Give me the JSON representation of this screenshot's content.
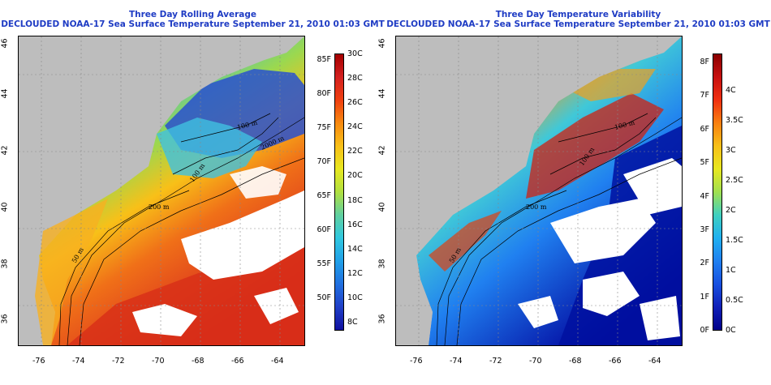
{
  "left": {
    "title_line1": "Three Day Rolling Average",
    "title_line2": "DECLOUDED NOAA-17 Sea Surface Temperature September 21, 2010 01:03 GMT",
    "contour_labels": [
      "50 m",
      "200 m",
      "100 m",
      "100 m",
      "2000 m"
    ],
    "colorbar_f": [
      "85F",
      "80F",
      "75F",
      "70F",
      "65F",
      "60F",
      "55F",
      "50F"
    ],
    "colorbar_c": [
      "30C",
      "28C",
      "26C",
      "24C",
      "22C",
      "20C",
      "18C",
      "16C",
      "14C",
      "12C",
      "10C",
      "8C"
    ],
    "colors": [
      "#a50000",
      "#d42020",
      "#f04010",
      "#f88a10",
      "#f8c018",
      "#e8e820",
      "#b0e040",
      "#60d0a0",
      "#30c8e0",
      "#20a0e8",
      "#2070e0",
      "#2040c8",
      "#1010a0"
    ]
  },
  "right": {
    "title_line1": "Three Day Temperature Variability",
    "title_line2": "DECLOUDED NOAA-17 Sea Surface Temperature September 21, 2010 01:03 GMT",
    "contour_labels": [
      "50 m",
      "200 m",
      "100 m",
      "100 m"
    ],
    "colorbar_f": [
      "8F",
      "7F",
      "6F",
      "5F",
      "4F",
      "3F",
      "2F",
      "1F",
      "0F"
    ],
    "colorbar_c": [
      "4C",
      "3.5C",
      "3C",
      "2.5C",
      "2C",
      "1.5C",
      "1C",
      "0.5C",
      "0C"
    ],
    "colors": [
      "#8a0000",
      "#c81010",
      "#f03010",
      "#f88010",
      "#f8c018",
      "#e8e820",
      "#a0e050",
      "#40d0c0",
      "#20b0f0",
      "#2080f0",
      "#1850e0",
      "#1020b8",
      "#00008a"
    ]
  },
  "axes": {
    "lat_ticks": [
      "46",
      "44",
      "42",
      "40",
      "38",
      "36"
    ],
    "lon_ticks": [
      "-76",
      "-74",
      "-72",
      "-70",
      "-68",
      "-66",
      "-64"
    ]
  }
}
